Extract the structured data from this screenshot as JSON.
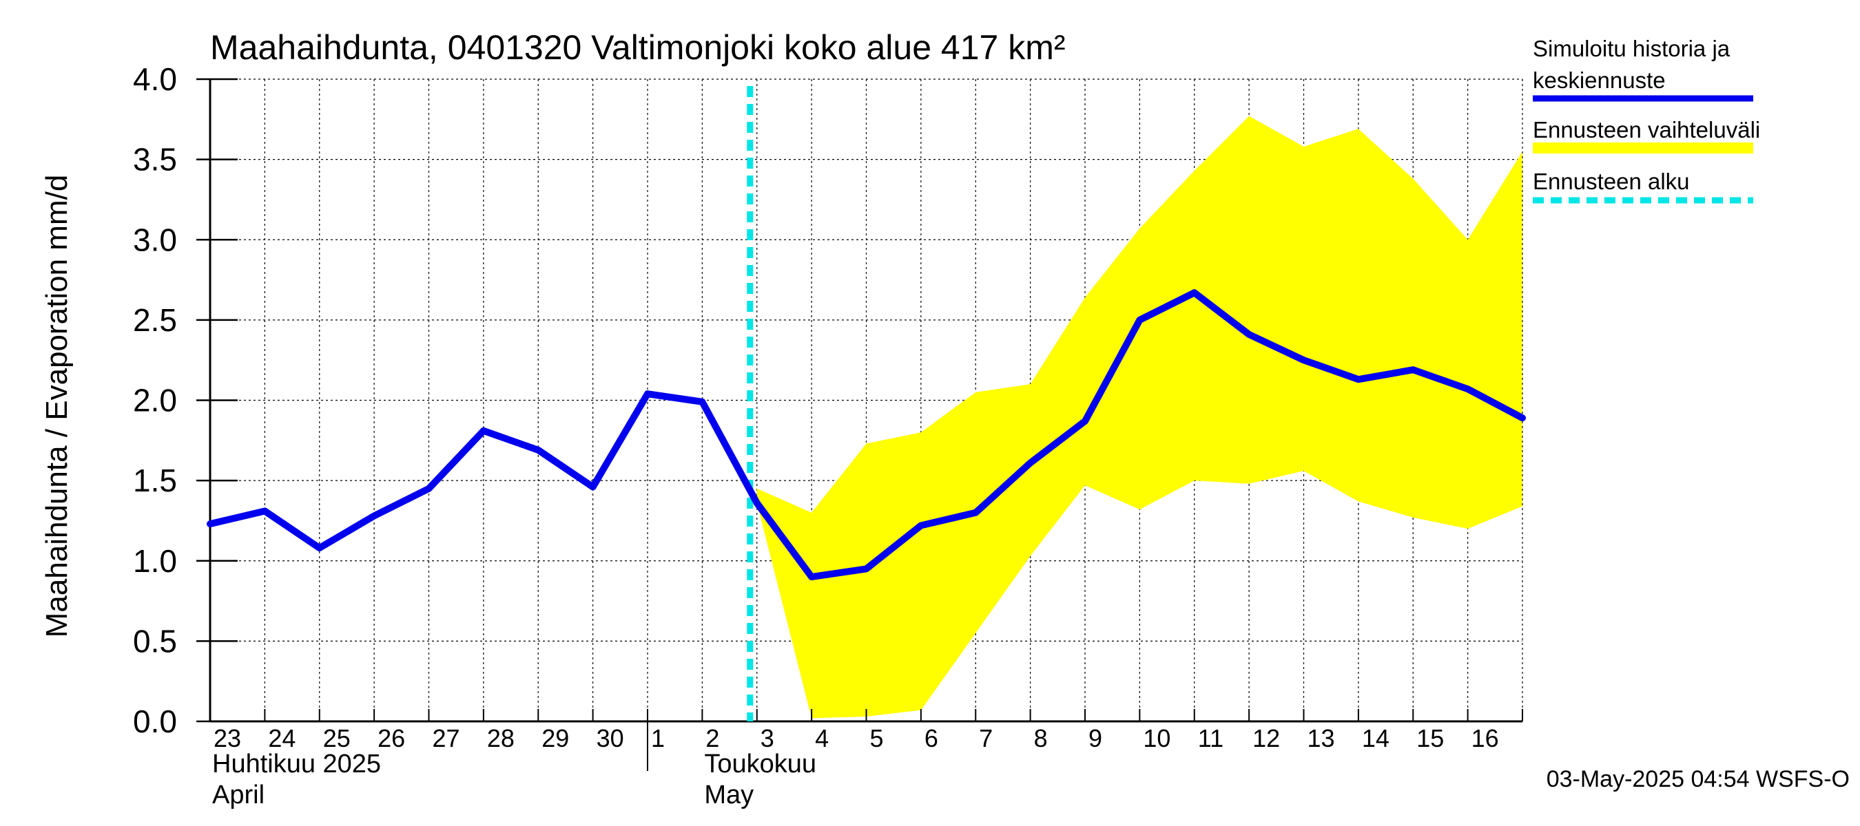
{
  "chart_data": {
    "type": "line",
    "title": "Maahaihdunta, 0401320 Valtimonjoki koko alue 417 km²",
    "ylabel": "Maahaihdunta / Evaporation   mm/d",
    "ylim": [
      0.0,
      4.0
    ],
    "yticks": [
      "0.0",
      "0.5",
      "1.0",
      "1.5",
      "2.0",
      "2.5",
      "3.0",
      "3.5",
      "4.0"
    ],
    "x_days": [
      "23",
      "24",
      "25",
      "26",
      "27",
      "28",
      "29",
      "30",
      "1",
      "2",
      "3",
      "4",
      "5",
      "6",
      "7",
      "8",
      "9",
      "10",
      "11",
      "12",
      "13",
      "14",
      "15",
      "16"
    ],
    "month_labels": [
      {
        "line1": "Huhtikuu  2025",
        "line2": "April"
      },
      {
        "line1": "Toukokuu",
        "line2": "May"
      }
    ],
    "grid": true,
    "legend_position": "right",
    "series": [
      {
        "name": "Simuloitu historia ja keskiennuste",
        "color": "#0000ee",
        "x": [
          0,
          1,
          2,
          3,
          4,
          5,
          6,
          7,
          8,
          9,
          10,
          11,
          12,
          13,
          14,
          15,
          16,
          17,
          18,
          19,
          20,
          21,
          22,
          23,
          24
        ],
        "values": [
          1.23,
          1.31,
          1.08,
          1.28,
          1.45,
          1.81,
          1.69,
          1.46,
          2.04,
          1.99,
          1.36,
          0.9,
          0.95,
          1.22,
          1.3,
          1.61,
          1.87,
          2.5,
          2.67,
          2.41,
          2.25,
          2.13,
          2.19,
          2.07,
          1.89
        ]
      },
      {
        "name": "Ennusteen vaihteluväli",
        "color": "#ffff00",
        "x": [
          10,
          11,
          12,
          13,
          14,
          15,
          16,
          17,
          18,
          19,
          20,
          21,
          22,
          23,
          24
        ],
        "upper": [
          1.45,
          1.3,
          1.73,
          1.8,
          2.05,
          2.1,
          2.64,
          3.07,
          3.43,
          3.77,
          3.58,
          3.69,
          3.38,
          3.0,
          3.55
        ],
        "lower": [
          1.36,
          0.02,
          0.03,
          0.07,
          0.55,
          1.03,
          1.47,
          1.32,
          1.5,
          1.48,
          1.56,
          1.37,
          1.27,
          1.2,
          1.34
        ]
      }
    ],
    "forecast_start": {
      "name": "Ennusteen alku",
      "x": 10,
      "color": "#00e5e5"
    },
    "legend": [
      {
        "line1": "Simuloitu historia ja",
        "line2": "keskiennuste",
        "color": "#0000ee",
        "style": "solid"
      },
      {
        "line1": "Ennusteen vaihteluväli",
        "line2": "",
        "color": "#ffff00",
        "style": "solid"
      },
      {
        "line1": "Ennusteen alku",
        "line2": "",
        "color": "#00e5e5",
        "style": "dashed"
      }
    ],
    "footer": "03-May-2025 04:54 WSFS-O"
  }
}
